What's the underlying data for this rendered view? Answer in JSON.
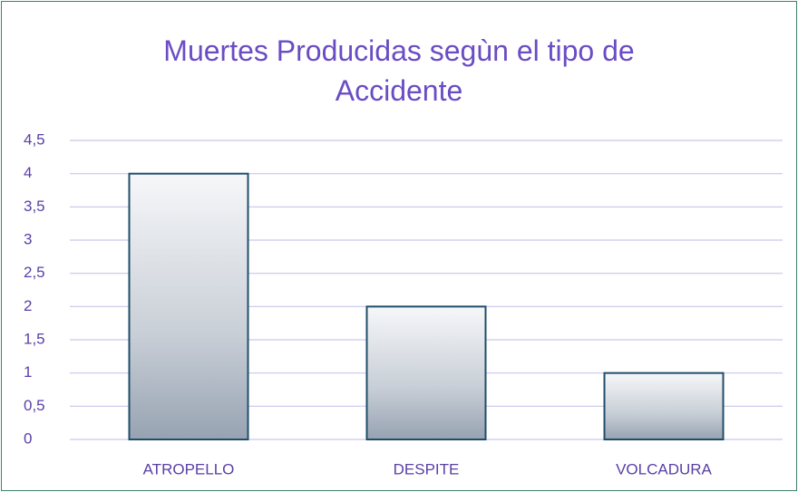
{
  "chart_data": {
    "type": "bar",
    "title": "Muertes Producidas segùn el tipo de Accidente",
    "categories": [
      "ATROPELLO",
      "DESPITE",
      "VOLCADURA"
    ],
    "values": [
      4,
      2,
      1
    ],
    "color": "#1f4e6b",
    "ylim": [
      0,
      4.5
    ],
    "yticks": [
      0,
      {
        "value": 0.5,
        "label": "0,5"
      },
      1,
      {
        "value": 1.5,
        "label": "1,5"
      },
      2,
      {
        "value": 2.5,
        "label": "2,5"
      },
      3,
      {
        "value": 3.5,
        "label": "3,5"
      },
      4,
      {
        "value": 4.5,
        "label": "4,5"
      }
    ],
    "grid": true
  }
}
